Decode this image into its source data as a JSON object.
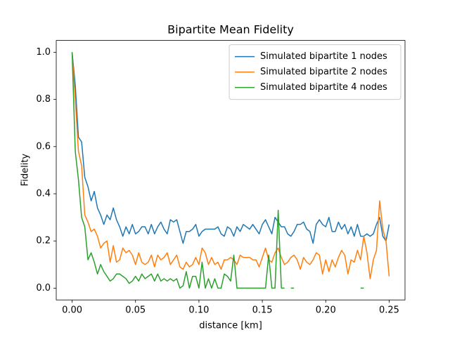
{
  "chart_data": {
    "type": "line",
    "title": "Bipartite Mean Fidelity",
    "x_label": "distance [km]",
    "y_label": "Fidelity",
    "x": [
      0,
      0.0025,
      0.005,
      0.0075,
      0.01,
      0.0125,
      0.015,
      0.0175,
      0.02,
      0.0225,
      0.025,
      0.0275,
      0.03,
      0.0325,
      0.035,
      0.0375,
      0.04,
      0.0425,
      0.045,
      0.0475,
      0.05,
      0.0525,
      0.055,
      0.0575,
      0.06,
      0.0625,
      0.065,
      0.0675,
      0.07,
      0.0725,
      0.075,
      0.0775,
      0.08,
      0.0825,
      0.085,
      0.0875,
      0.09,
      0.0925,
      0.095,
      0.0975,
      0.1,
      0.1025,
      0.105,
      0.1075,
      0.11,
      0.1125,
      0.115,
      0.1175,
      0.12,
      0.1225,
      0.125,
      0.1275,
      0.13,
      0.1325,
      0.135,
      0.1375,
      0.14,
      0.1425,
      0.145,
      0.1475,
      0.15,
      0.1525,
      0.155,
      0.1575,
      0.16,
      0.1625,
      0.165,
      0.1675,
      0.17,
      0.1725,
      0.175,
      0.1775,
      0.18,
      0.1825,
      0.185,
      0.1875,
      0.19,
      0.1925,
      0.195,
      0.1975,
      0.2,
      0.2025,
      0.205,
      0.2075,
      0.21,
      0.2125,
      0.215,
      0.2175,
      0.22,
      0.2225,
      0.225,
      0.2275,
      0.23,
      0.2325,
      0.235,
      0.2375,
      0.24,
      0.2425,
      0.245,
      0.2475,
      0.25
    ],
    "series": [
      {
        "name": "Simulated bipartite 1 nodes",
        "color": "#1f77b4",
        "values": [
          1.0,
          0.86,
          0.64,
          0.62,
          0.47,
          0.43,
          0.37,
          0.41,
          0.34,
          0.31,
          0.27,
          0.31,
          0.29,
          0.34,
          0.29,
          0.26,
          0.22,
          0.26,
          0.23,
          0.27,
          0.23,
          0.24,
          0.26,
          0.26,
          0.23,
          0.27,
          0.23,
          0.26,
          0.28,
          0.25,
          0.23,
          0.29,
          0.28,
          0.29,
          0.24,
          0.19,
          0.24,
          0.24,
          0.25,
          0.27,
          0.22,
          0.24,
          0.25,
          0.25,
          0.25,
          0.25,
          0.26,
          0.23,
          0.22,
          0.26,
          0.25,
          0.22,
          0.26,
          0.24,
          0.27,
          0.26,
          0.25,
          0.27,
          0.25,
          0.23,
          0.27,
          0.29,
          0.26,
          0.23,
          0.3,
          0.28,
          0.26,
          0.26,
          0.23,
          0.22,
          0.24,
          0.27,
          0.27,
          0.28,
          0.25,
          0.24,
          0.19,
          0.27,
          0.29,
          0.27,
          0.26,
          0.3,
          0.24,
          0.24,
          0.28,
          0.25,
          0.27,
          0.23,
          0.26,
          0.22,
          0.27,
          0.22,
          0.22,
          0.23,
          0.22,
          0.23,
          0.27,
          0.3,
          0.22,
          0.2,
          0.27
        ]
      },
      {
        "name": "Simulated bipartite 2 nodes",
        "color": "#ff7f0e",
        "values": [
          1.0,
          0.8,
          0.58,
          0.52,
          0.31,
          0.28,
          0.24,
          0.25,
          0.22,
          0.17,
          0.19,
          0.2,
          0.11,
          0.18,
          0.11,
          0.12,
          0.17,
          0.15,
          0.16,
          0.14,
          0.1,
          0.15,
          0.11,
          0.1,
          0.11,
          0.14,
          0.09,
          0.14,
          0.12,
          0.13,
          0.15,
          0.1,
          0.12,
          0.14,
          0.09,
          0.08,
          0.11,
          0.09,
          0.1,
          0.13,
          0.1,
          0.17,
          0.15,
          0.1,
          0.13,
          0.1,
          0.11,
          0.08,
          0.12,
          0.12,
          0.13,
          0.12,
          0.1,
          0.14,
          0.13,
          0.13,
          0.13,
          0.12,
          0.12,
          0.09,
          0.13,
          0.17,
          0.12,
          0.11,
          0.15,
          0.17,
          0.13,
          0.1,
          0.11,
          0.13,
          0.14,
          0.12,
          0.08,
          0.13,
          0.11,
          0.1,
          0.12,
          0.15,
          0.14,
          0.06,
          0.12,
          0.07,
          0.12,
          0.09,
          0.13,
          0.16,
          0.14,
          0.06,
          0.12,
          0.11,
          0.16,
          0.12,
          0.22,
          0.15,
          0.04,
          0.12,
          0.16,
          0.37,
          0.25,
          0.2,
          0.05
        ]
      },
      {
        "name": "Simulated bipartite 4 nodes",
        "color": "#2ca02c",
        "values": [
          1.0,
          0.58,
          0.46,
          0.3,
          0.26,
          0.12,
          0.15,
          0.11,
          0.06,
          0.1,
          0.07,
          0.05,
          0.03,
          0.04,
          0.06,
          0.06,
          0.05,
          0.04,
          0.02,
          0.03,
          0.05,
          0.03,
          0.06,
          0.04,
          0.05,
          0.06,
          0.03,
          0.06,
          0.03,
          0.04,
          0.03,
          0.04,
          0.03,
          0.04,
          0.0,
          0.01,
          0.07,
          0.0,
          0.05,
          0.05,
          0.0,
          0.11,
          0.0,
          0.04,
          0.0,
          0.04,
          0.0,
          0.0,
          0.06,
          0.05,
          0.03,
          0.14,
          0.0,
          0.0,
          0.0,
          0.0,
          0.0,
          0.0,
          0.0,
          0.0,
          0.0,
          0.0,
          0.14,
          0.0,
          0.0,
          0.33,
          0.0,
          0.0,
          null,
          0.0,
          0.0,
          null,
          null,
          null,
          null,
          null,
          null,
          null,
          null,
          null,
          null,
          null,
          null,
          null,
          null,
          null,
          null,
          null,
          null,
          null,
          null,
          0.0,
          0.0,
          null,
          null,
          null,
          null,
          null,
          null,
          null,
          null
        ]
      }
    ],
    "xlim": [
      -0.0125,
      0.2625
    ],
    "xticks": [
      {
        "value": 0,
        "label": "0.00"
      },
      {
        "value": 0.05,
        "label": "0.05"
      },
      {
        "value": 0.1,
        "label": "0.10"
      },
      {
        "value": 0.15,
        "label": "0.15"
      },
      {
        "value": 0.2,
        "label": "0.20"
      },
      {
        "value": 0.25,
        "label": "0.25"
      }
    ],
    "ylim": [
      -0.05,
      1.05
    ],
    "yticks": [
      {
        "value": 0,
        "label": "0.0"
      },
      0.2,
      0.4,
      0.6,
      0.8,
      {
        "value": 1,
        "label": "1.0"
      }
    ],
    "grid": false,
    "legend": "upper right"
  }
}
